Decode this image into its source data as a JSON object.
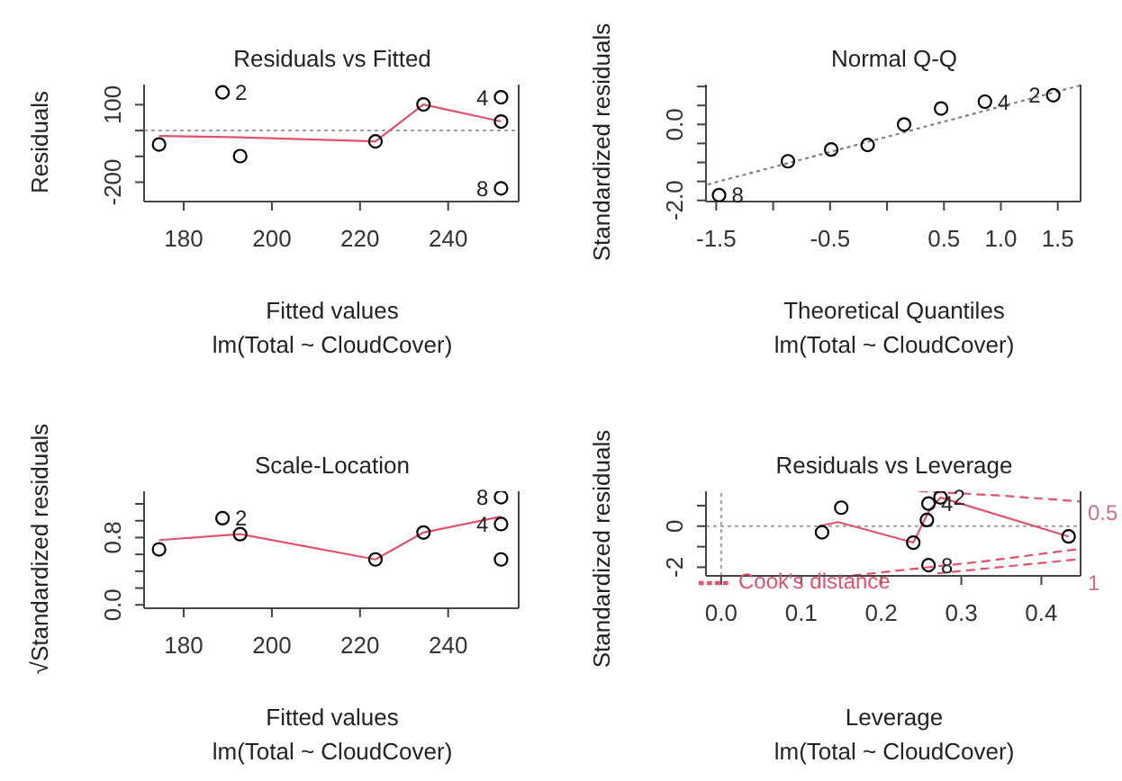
{
  "chart_data": [
    {
      "type": "scatter",
      "title": "Residuals vs Fitted",
      "xlabel": "Fitted values",
      "subtitle": "lm(Total ~ CloudCover)",
      "ylabel": "Residuals",
      "xlim": [
        171,
        256
      ],
      "ylim": [
        -275,
        178
      ],
      "xticks": [
        180,
        200,
        220,
        240
      ],
      "yticks": [
        100,
        {
          "value": 0,
          "label": null
        },
        {
          "value": -100,
          "label": null
        },
        -200
      ],
      "series": [
        {
          "type": "scatter",
          "marker": "circle",
          "color": "#000000",
          "x": [
            174.4,
            188.8,
            192.8,
            223.5,
            234.4,
            252,
            252,
            252
          ],
          "values": [
            -54,
            148,
            -99,
            -42,
            101,
            129,
            35,
            -224
          ]
        },
        {
          "type": "line",
          "color": "#df536b",
          "x": [
            174.4,
            192.8,
            223.5,
            234.4,
            252
          ],
          "values": [
            -21,
            -26,
            -42,
            101,
            35
          ]
        }
      ],
      "ref_lines": [
        {
          "axis": "y",
          "value": 0,
          "color": "#a0a0a0",
          "line_style": "dotted"
        }
      ],
      "annotations": [
        {
          "text": "2",
          "x": 188.8,
          "y": 148
        },
        {
          "text": "4",
          "x": 252,
          "y": 129
        },
        {
          "text": "8",
          "x": 252,
          "y": -224
        }
      ]
    },
    {
      "type": "scatter",
      "title": "Normal Q-Q",
      "xlabel": "Theoretical Quantiles",
      "subtitle": "lm(Total ~ CloudCover)",
      "ylabel": "Standardized residuals",
      "xlim": [
        -1.59,
        1.7
      ],
      "ylim": [
        -2.03,
        1.05
      ],
      "xticks": [
        -1.5,
        {
          "value": -1,
          "label": null
        },
        -0.5,
        {
          "value": 0,
          "label": null
        },
        0.5,
        {
          "value": 1,
          "label": "1.0"
        },
        1.5
      ],
      "yticks": [
        {
          "value": 1,
          "label": null
        },
        {
          "value": 0.5,
          "label": null
        },
        {
          "value": 0,
          "label": "0.0"
        },
        {
          "value": -0.5,
          "label": null
        },
        {
          "value": -1,
          "label": null
        },
        {
          "value": -1.5,
          "label": null
        },
        {
          "value": -2,
          "label": "-2.0"
        }
      ],
      "series": [
        {
          "type": "line",
          "color": "#808080",
          "line_style": "dotted",
          "x": [
            -1.575,
            1.7
          ],
          "values": [
            -1.58,
            1.03
          ]
        },
        {
          "type": "scatter",
          "marker": "circle",
          "color": "#000000",
          "x": [
            -1.475,
            -0.87,
            -0.49,
            -0.17,
            0.15,
            0.475,
            0.86,
            1.46
          ],
          "values": [
            -1.86,
            -0.97,
            -0.66,
            -0.54,
            0,
            0.42,
            0.6,
            0.77
          ]
        }
      ],
      "annotations": [
        {
          "text": "8",
          "x": -1.475,
          "y": -1.86
        },
        {
          "text": "4",
          "x": 0.86,
          "y": 0.6
        },
        {
          "text": "2",
          "x": 1.46,
          "y": 0.77
        }
      ]
    },
    {
      "type": "scatter",
      "title": "Scale-Location",
      "xlabel": "Fitted values",
      "subtitle": "lm(Total ~ CloudCover)",
      "ylabel": "√Standardized residuals",
      "xlim": [
        171,
        256
      ],
      "ylim": [
        -0.04,
        1.35
      ],
      "xticks": [
        180,
        200,
        220,
        240
      ],
      "yticks": [
        {
          "value": 1.2,
          "label": null
        },
        {
          "value": 1,
          "label": null
        },
        0.8,
        {
          "value": 0.6,
          "label": null
        },
        {
          "value": 0.4,
          "label": null
        },
        {
          "value": 0.2,
          "label": null
        },
        {
          "value": 0,
          "label": "0.0"
        }
      ],
      "series": [
        {
          "type": "scatter",
          "marker": "circle",
          "color": "#000000",
          "x": [
            174.4,
            188.8,
            192.8,
            223.5,
            234.4,
            252,
            252,
            252
          ],
          "values": [
            0.66,
            1.03,
            0.84,
            0.54,
            0.86,
            1.28,
            0.96,
            0.54
          ]
        },
        {
          "type": "line",
          "color": "#df536b",
          "x": [
            174.4,
            192.8,
            223.5,
            234.4,
            252
          ],
          "values": [
            0.77,
            0.84,
            0.54,
            0.86,
            1.05
          ]
        }
      ],
      "annotations": [
        {
          "text": "2",
          "x": 188.8,
          "y": 1.03
        },
        {
          "text": "8",
          "x": 252,
          "y": 1.28
        },
        {
          "text": "4",
          "x": 252,
          "y": 0.96
        }
      ]
    },
    {
      "type": "scatter",
      "title": "Residuals vs Leverage",
      "xlabel": "Leverage",
      "subtitle": "lm(Total ~ CloudCover)",
      "ylabel": "Standardized residuals",
      "xlim": [
        -0.019,
        0.449
      ],
      "ylim": [
        -2.42,
        1.7
      ],
      "xticks": [
        {
          "value": 0,
          "label": "0.0"
        },
        0.1,
        0.2,
        0.3,
        0.4
      ],
      "yticks": [
        {
          "value": 1,
          "label": null
        },
        0,
        {
          "value": -1,
          "label": null
        },
        -2
      ],
      "legend": "bottom left",
      "series": [
        {
          "type": "scatter",
          "marker": "circle",
          "color": "#000000",
          "x": [
            0.126,
            0.15,
            0.24,
            0.257,
            0.259,
            0.259,
            0.274,
            0.434
          ],
          "values": [
            -0.3,
            0.9,
            -0.8,
            0.3,
            1.1,
            -1.9,
            1.4,
            -0.5
          ]
        },
        {
          "type": "line",
          "color": "#df536b",
          "x": [
            0.122,
            0.146,
            0.24,
            0.259,
            0.274,
            0.434
          ],
          "values": [
            0,
            0.2,
            -0.8,
            0.7,
            1.4,
            -0.5
          ]
        },
        {
          "type": "line",
          "name": "Cook's distance",
          "color": "#df536b",
          "line_style": "dashed",
          "x": [
            0.247,
            0.347,
            0.449
          ],
          "values": [
            1.7,
            1.5,
            1.2
          ]
        },
        {
          "type": "line",
          "color": "#df536b",
          "line_style": "dashed",
          "x": [
            0.164,
            0.331,
            0.449
          ],
          "values": [
            -2.4,
            -1.7,
            -1.1
          ]
        },
        {
          "type": "line",
          "color": "#df536b",
          "line_style": "dashed",
          "x": [
            0.27,
            0.449
          ],
          "values": [
            -2.3,
            -1.6
          ]
        }
      ],
      "ref_lines": [
        {
          "axis": "x",
          "value": 0,
          "color": "#a0a0a0",
          "line_style": "dotted"
        },
        {
          "axis": "y",
          "value": 0,
          "color": "#a0a0a0",
          "line_style": "dotted"
        }
      ],
      "annotations": [
        {
          "text": "2",
          "x": 0.274,
          "y": 1.4
        },
        {
          "text": "4",
          "x": 0.259,
          "y": 1.1
        },
        {
          "text": "8",
          "x": 0.259,
          "y": -1.9
        },
        "0.5",
        "1"
      ]
    }
  ]
}
